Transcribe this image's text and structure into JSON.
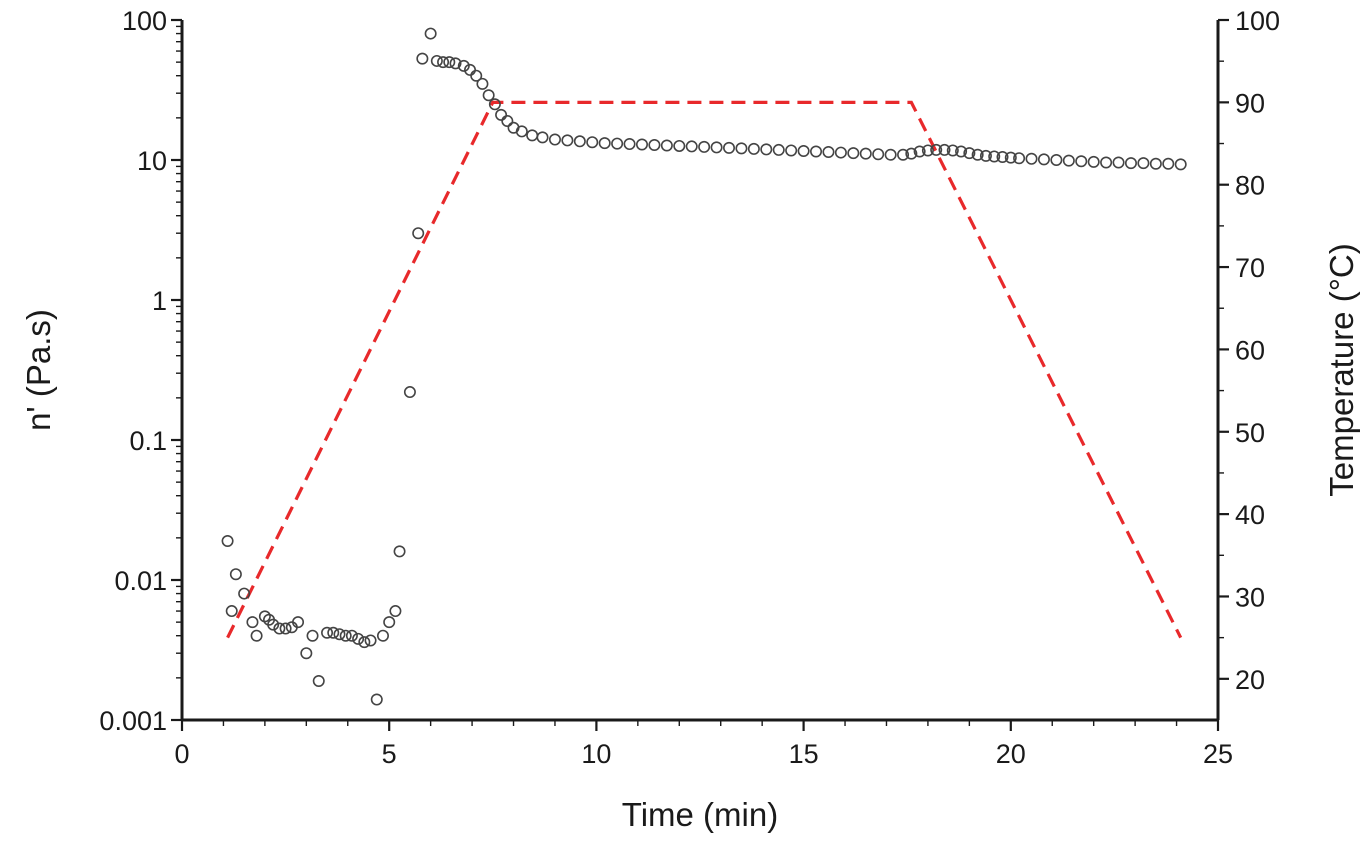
{
  "chart_data": {
    "type": "scatter",
    "title": "",
    "xlabel": "Time (min)",
    "ylabel": "n' (Pa.s)",
    "y2label": "Temperature (°C)",
    "xlim": [
      0,
      25
    ],
    "ylim": [
      0.001,
      100
    ],
    "y_scale": "log",
    "y2lim": [
      15,
      100
    ],
    "x_ticks": [
      "0",
      "5",
      "10",
      "15",
      "20",
      "25"
    ],
    "y_ticks": [
      "0.001",
      "0.01",
      "0.1",
      "1",
      "10",
      "100"
    ],
    "y2_ticks": [
      "20",
      "30",
      "40",
      "50",
      "60",
      "70",
      "80",
      "90",
      "100"
    ],
    "grid": false,
    "colors": {
      "viscosity": "#444444",
      "temperature": "#e8292b"
    },
    "series": [
      {
        "type": "scatter",
        "axis": "left",
        "marker": "open-circle",
        "x": [
          1.1,
          1.2,
          1.3,
          1.5,
          1.7,
          1.8,
          2.0,
          2.1,
          2.2,
          2.35,
          2.5,
          2.65,
          2.8,
          3.0,
          3.15,
          3.3,
          3.5,
          3.65,
          3.8,
          3.95,
          4.1,
          4.25,
          4.4,
          4.55,
          4.7,
          4.85,
          5.0,
          5.15,
          5.25,
          5.5,
          5.7,
          5.8,
          6.0,
          6.15,
          6.3,
          6.45,
          6.6,
          6.8,
          6.95,
          7.1,
          7.25,
          7.4,
          7.55,
          7.7,
          7.85,
          8.0,
          8.2,
          8.45,
          8.7,
          9.0,
          9.3,
          9.6,
          9.9,
          10.2,
          10.5,
          10.8,
          11.1,
          11.4,
          11.7,
          12.0,
          12.3,
          12.6,
          12.9,
          13.2,
          13.5,
          13.8,
          14.1,
          14.4,
          14.7,
          15.0,
          15.3,
          15.6,
          15.9,
          16.2,
          16.5,
          16.8,
          17.1,
          17.4,
          17.6,
          17.8,
          18.0,
          18.2,
          18.4,
          18.6,
          18.8,
          19.0,
          19.2,
          19.4,
          19.6,
          19.8,
          20.0,
          20.2,
          20.5,
          20.8,
          21.1,
          21.4,
          21.7,
          22.0,
          22.3,
          22.6,
          22.9,
          23.2,
          23.5,
          23.8,
          24.1
        ],
        "y": [
          0.019,
          0.006,
          0.011,
          0.008,
          0.005,
          0.004,
          0.0055,
          0.0052,
          0.0048,
          0.0045,
          0.0045,
          0.0046,
          0.005,
          0.003,
          0.004,
          0.0019,
          0.0042,
          0.0042,
          0.0041,
          0.004,
          0.004,
          0.0038,
          0.0036,
          0.0037,
          0.0014,
          0.004,
          0.005,
          0.006,
          0.016,
          0.22,
          3.0,
          53,
          80,
          51,
          50,
          50,
          49,
          47,
          44,
          40,
          35,
          29,
          25,
          21,
          19,
          17,
          16,
          15,
          14.5,
          14,
          13.8,
          13.6,
          13.4,
          13.2,
          13.1,
          13.0,
          12.9,
          12.8,
          12.7,
          12.6,
          12.5,
          12.4,
          12.3,
          12.2,
          12.1,
          12.0,
          11.9,
          11.8,
          11.7,
          11.6,
          11.5,
          11.4,
          11.3,
          11.2,
          11.1,
          11.0,
          10.9,
          10.9,
          11.1,
          11.5,
          11.7,
          11.8,
          11.8,
          11.7,
          11.5,
          11.2,
          10.9,
          10.7,
          10.6,
          10.5,
          10.4,
          10.3,
          10.2,
          10.1,
          10.0,
          9.9,
          9.8,
          9.7,
          9.6,
          9.6,
          9.5,
          9.5,
          9.4,
          9.4,
          9.3
        ]
      },
      {
        "type": "line",
        "axis": "right",
        "style": "dashed",
        "x": [
          1.1,
          7.5,
          17.6,
          24.1
        ],
        "y": [
          25,
          90,
          90,
          25
        ]
      }
    ]
  }
}
